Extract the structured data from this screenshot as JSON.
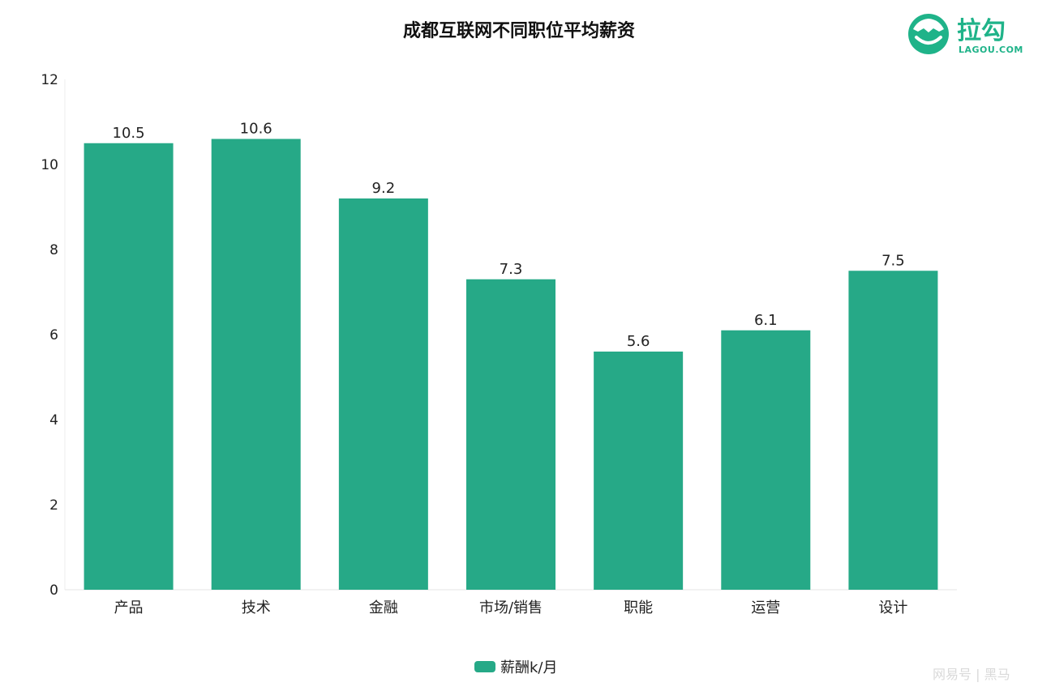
{
  "chart_data": {
    "type": "bar",
    "title": "成都互联网不同职位平均薪资",
    "categories": [
      "产品",
      "技术",
      "金融",
      "市场/销售",
      "职能",
      "运营",
      "设计"
    ],
    "series": [
      {
        "name": "薪酬k/月",
        "values": [
          10.5,
          10.6,
          9.2,
          7.3,
          5.6,
          6.1,
          7.5
        ],
        "data_labels": [
          "10.5",
          "10.6",
          "9.2",
          "7.3",
          "5.6",
          "6.1",
          "7.5"
        ]
      }
    ],
    "ylim": [
      0,
      12
    ],
    "yticks": [
      0,
      2,
      4,
      6,
      8,
      10,
      12
    ],
    "xlabel": "",
    "ylabel": "",
    "legend_position": "bottom-center",
    "grid": false,
    "bar_color": "#26a987"
  },
  "logo": {
    "text": "拉勾",
    "subtext": "LAGOU.COM",
    "color": "#1fb389",
    "icon": "lagou-logo-icon"
  },
  "watermark": {
    "text": "网易号 | 黑马"
  }
}
